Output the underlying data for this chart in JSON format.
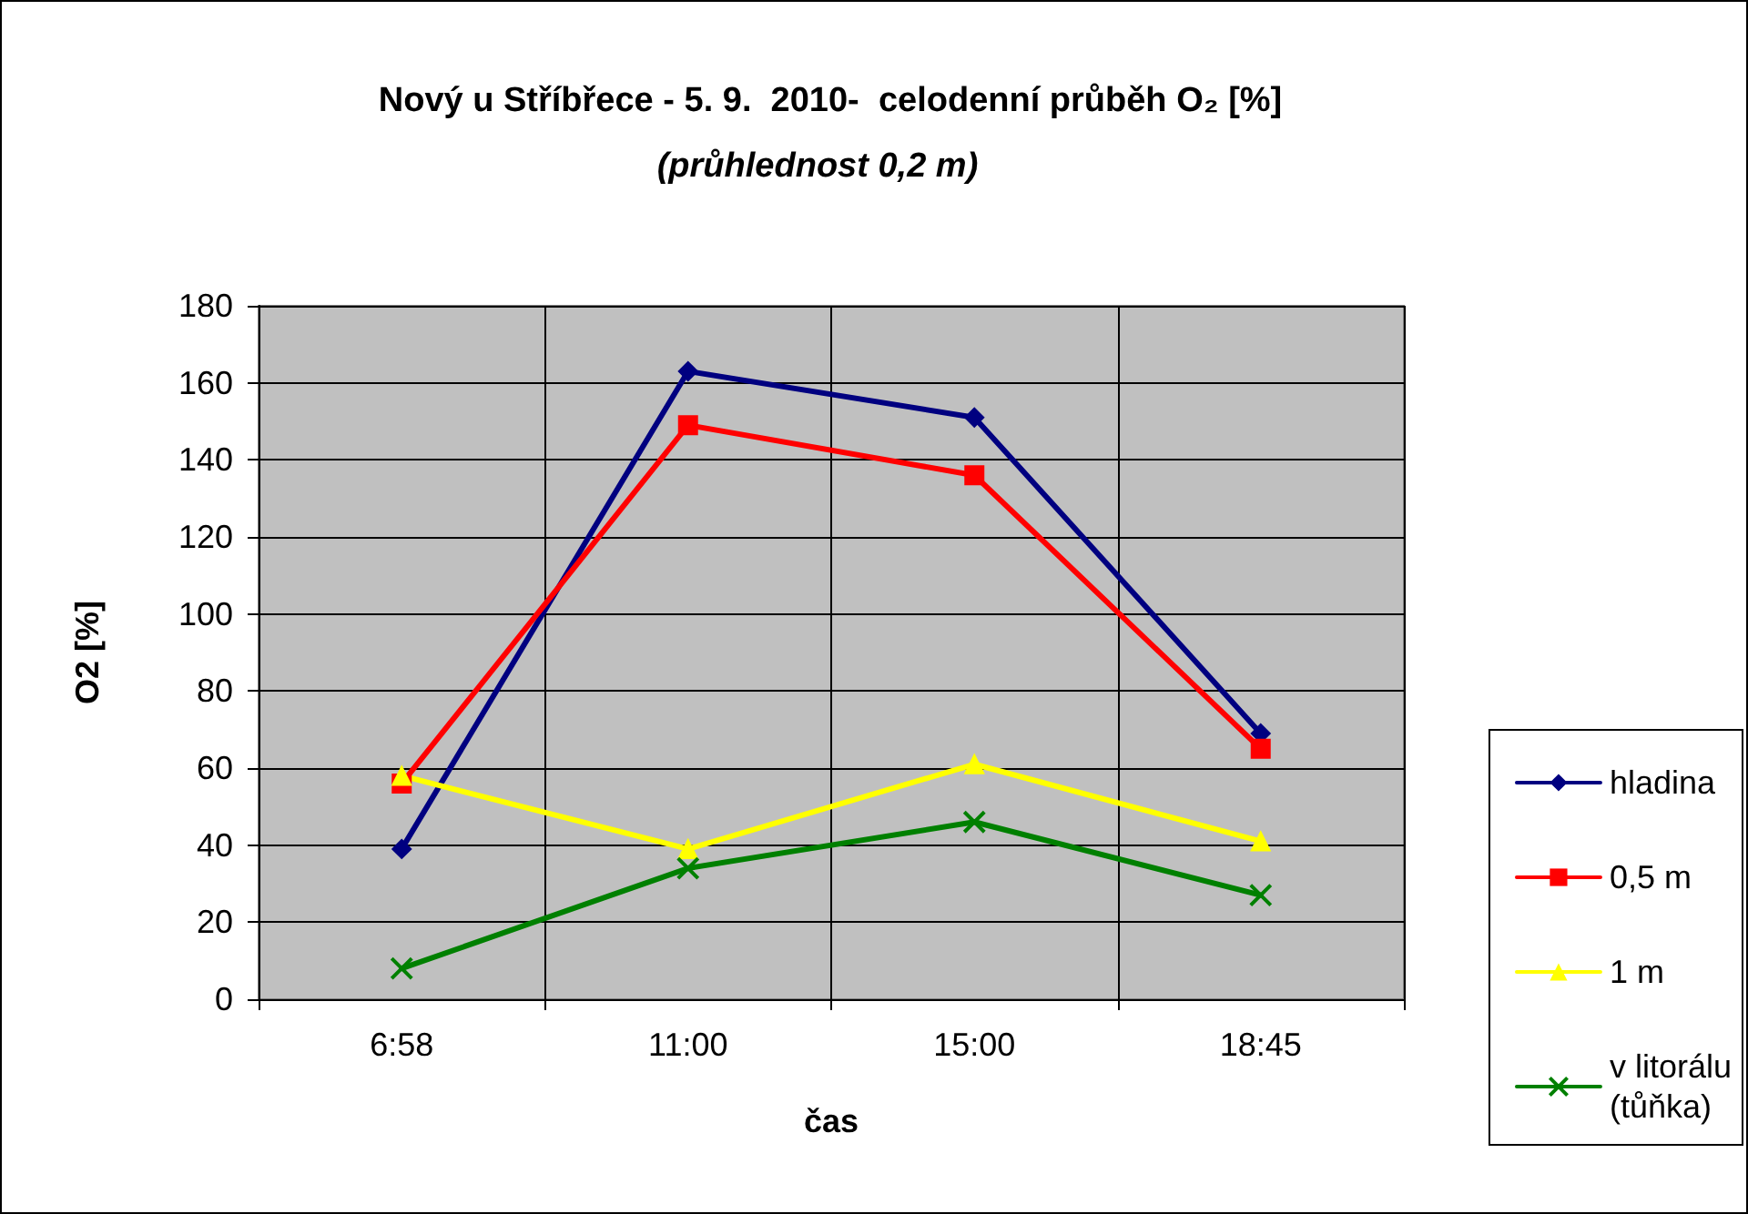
{
  "chart_data": {
    "type": "line",
    "title": "Nový u Stříbřece - 5. 9.  2010-  celodenní průběh O₂ [%]",
    "subtitle": "(průhlednost 0,2 m)",
    "xlabel": "čas",
    "ylabel": "O2 [%]",
    "categories": [
      "6:58",
      "11:00",
      "15:00",
      "18:45"
    ],
    "series": [
      {
        "name": "hladina",
        "color": "#000080",
        "marker": "diamond",
        "values": [
          39,
          163,
          151,
          69
        ]
      },
      {
        "name": "0,5 m",
        "color": "#ff0000",
        "marker": "square",
        "values": [
          56,
          149,
          136,
          65
        ]
      },
      {
        "name": "1 m",
        "color": "#ffff00",
        "marker": "triangle",
        "values": [
          58,
          39,
          61,
          41
        ]
      },
      {
        "name": "v litorálu\n(tůňka)",
        "color": "#008000",
        "marker": "cross",
        "values": [
          8,
          34,
          46,
          27
        ]
      }
    ],
    "ylim": [
      0,
      180
    ],
    "yticks": [
      0,
      20,
      40,
      60,
      80,
      100,
      120,
      140,
      160,
      180
    ],
    "grid": true,
    "legend": "right"
  }
}
